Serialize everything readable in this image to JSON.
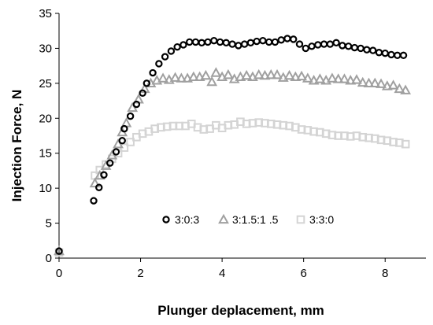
{
  "chart_data": {
    "type": "scatter",
    "title": "",
    "xlabel": "Plunger deplacement, mm",
    "ylabel": "Injection Force, N",
    "xlim": [
      0,
      9
    ],
    "ylim": [
      0,
      35
    ],
    "xticks": [
      0,
      2,
      4,
      6,
      8
    ],
    "yticks": [
      0,
      5,
      10,
      15,
      20,
      25,
      30,
      35
    ],
    "grid": false,
    "legend_position": "inside-bottom-center",
    "series": [
      {
        "name": "3:0:3",
        "marker": "circle",
        "color": "#000000",
        "points": [
          [
            0,
            1.0
          ],
          [
            0.85,
            8.2
          ],
          [
            0.98,
            10.1
          ],
          [
            1.1,
            11.9
          ],
          [
            1.25,
            13.6
          ],
          [
            1.4,
            15.2
          ],
          [
            1.55,
            16.8
          ],
          [
            1.6,
            18.5
          ],
          [
            1.75,
            20.3
          ],
          [
            1.9,
            22.0
          ],
          [
            2.05,
            23.6
          ],
          [
            2.15,
            25.0
          ],
          [
            2.3,
            26.5
          ],
          [
            2.45,
            27.8
          ],
          [
            2.6,
            28.8
          ],
          [
            2.75,
            29.6
          ],
          [
            2.9,
            30.2
          ],
          [
            3.05,
            30.5
          ],
          [
            3.2,
            30.9
          ],
          [
            3.35,
            30.9
          ],
          [
            3.5,
            30.8
          ],
          [
            3.65,
            30.9
          ],
          [
            3.8,
            31.1
          ],
          [
            3.95,
            30.9
          ],
          [
            4.1,
            30.8
          ],
          [
            4.25,
            30.6
          ],
          [
            4.4,
            30.4
          ],
          [
            4.55,
            30.6
          ],
          [
            4.7,
            30.8
          ],
          [
            4.85,
            31.0
          ],
          [
            5.0,
            31.1
          ],
          [
            5.15,
            30.9
          ],
          [
            5.3,
            30.9
          ],
          [
            5.45,
            31.2
          ],
          [
            5.6,
            31.4
          ],
          [
            5.75,
            31.3
          ],
          [
            5.9,
            30.6
          ],
          [
            6.05,
            30.0
          ],
          [
            6.2,
            30.3
          ],
          [
            6.35,
            30.5
          ],
          [
            6.5,
            30.6
          ],
          [
            6.65,
            30.6
          ],
          [
            6.8,
            30.8
          ],
          [
            6.95,
            30.4
          ],
          [
            7.1,
            30.3
          ],
          [
            7.25,
            30.1
          ],
          [
            7.4,
            30.0
          ],
          [
            7.55,
            29.8
          ],
          [
            7.7,
            29.7
          ],
          [
            7.85,
            29.4
          ],
          [
            8.0,
            29.3
          ],
          [
            8.15,
            29.1
          ],
          [
            8.3,
            29.0
          ],
          [
            8.45,
            29.0
          ]
        ]
      },
      {
        "name": "3:1.5:1 .5",
        "marker": "triangle",
        "color": "#a0a0a0",
        "points": [
          [
            0,
            1.0
          ],
          [
            0.88,
            10.7
          ],
          [
            1.0,
            11.8
          ],
          [
            1.15,
            13.2
          ],
          [
            1.3,
            14.7
          ],
          [
            1.45,
            16.3
          ],
          [
            1.55,
            18.0
          ],
          [
            1.65,
            19.3
          ],
          [
            1.8,
            21.5
          ],
          [
            1.95,
            22.7
          ],
          [
            2.1,
            24.2
          ],
          [
            2.25,
            25.0
          ],
          [
            2.4,
            25.4
          ],
          [
            2.55,
            25.7
          ],
          [
            2.7,
            25.5
          ],
          [
            2.85,
            25.8
          ],
          [
            3.0,
            25.7
          ],
          [
            3.15,
            25.7
          ],
          [
            3.3,
            25.9
          ],
          [
            3.45,
            25.9
          ],
          [
            3.6,
            26.1
          ],
          [
            3.75,
            25.2
          ],
          [
            3.85,
            26.5
          ],
          [
            4.0,
            25.9
          ],
          [
            4.15,
            26.2
          ],
          [
            4.3,
            25.6
          ],
          [
            4.45,
            25.9
          ],
          [
            4.6,
            26.1
          ],
          [
            4.75,
            25.9
          ],
          [
            4.9,
            26.2
          ],
          [
            5.05,
            26.1
          ],
          [
            5.2,
            26.2
          ],
          [
            5.35,
            26.2
          ],
          [
            5.5,
            25.8
          ],
          [
            5.65,
            26.1
          ],
          [
            5.8,
            25.9
          ],
          [
            5.95,
            26.0
          ],
          [
            6.1,
            25.7
          ],
          [
            6.25,
            25.4
          ],
          [
            6.4,
            25.6
          ],
          [
            6.55,
            25.4
          ],
          [
            6.7,
            25.7
          ],
          [
            6.85,
            25.6
          ],
          [
            7.0,
            25.6
          ],
          [
            7.15,
            25.4
          ],
          [
            7.3,
            25.5
          ],
          [
            7.45,
            25.1
          ],
          [
            7.6,
            25.0
          ],
          [
            7.75,
            25.0
          ],
          [
            7.9,
            24.9
          ],
          [
            8.05,
            24.6
          ],
          [
            8.2,
            24.7
          ],
          [
            8.35,
            24.2
          ],
          [
            8.5,
            24.0
          ]
        ]
      },
      {
        "name": "3:3:0",
        "marker": "square",
        "color": "#d4d4d4",
        "points": [
          [
            0,
            0.8
          ],
          [
            0.88,
            11.8
          ],
          [
            1.0,
            12.6
          ],
          [
            1.15,
            13.4
          ],
          [
            1.3,
            14.2
          ],
          [
            1.45,
            15.0
          ],
          [
            1.6,
            15.8
          ],
          [
            1.75,
            16.6
          ],
          [
            1.9,
            17.3
          ],
          [
            2.05,
            17.8
          ],
          [
            2.2,
            18.1
          ],
          [
            2.35,
            18.5
          ],
          [
            2.5,
            18.7
          ],
          [
            2.65,
            18.8
          ],
          [
            2.8,
            18.9
          ],
          [
            2.95,
            18.9
          ],
          [
            3.1,
            18.9
          ],
          [
            3.25,
            19.2
          ],
          [
            3.4,
            18.7
          ],
          [
            3.55,
            18.4
          ],
          [
            3.7,
            18.5
          ],
          [
            3.85,
            19.0
          ],
          [
            4.0,
            18.6
          ],
          [
            4.15,
            19.0
          ],
          [
            4.3,
            19.1
          ],
          [
            4.45,
            19.5
          ],
          [
            4.6,
            19.2
          ],
          [
            4.75,
            19.3
          ],
          [
            4.9,
            19.4
          ],
          [
            5.05,
            19.3
          ],
          [
            5.2,
            19.2
          ],
          [
            5.35,
            19.1
          ],
          [
            5.5,
            19.0
          ],
          [
            5.65,
            18.9
          ],
          [
            5.8,
            18.7
          ],
          [
            5.95,
            18.4
          ],
          [
            6.1,
            18.3
          ],
          [
            6.25,
            18.1
          ],
          [
            6.4,
            18.0
          ],
          [
            6.55,
            17.8
          ],
          [
            6.7,
            17.6
          ],
          [
            6.85,
            17.5
          ],
          [
            7.0,
            17.5
          ],
          [
            7.15,
            17.4
          ],
          [
            7.3,
            17.5
          ],
          [
            7.45,
            17.3
          ],
          [
            7.6,
            17.2
          ],
          [
            7.75,
            17.1
          ],
          [
            7.9,
            16.9
          ],
          [
            8.05,
            16.8
          ],
          [
            8.2,
            16.6
          ],
          [
            8.35,
            16.5
          ],
          [
            8.5,
            16.3
          ]
        ]
      }
    ]
  }
}
